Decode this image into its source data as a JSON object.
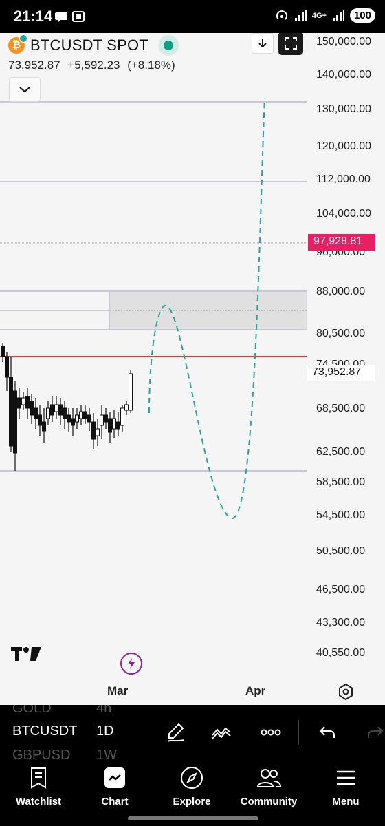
{
  "status_bar": {
    "time": "21:14",
    "network": "4G+",
    "battery": "100"
  },
  "header": {
    "symbol": "BTCUSDT SPOT",
    "last_price": "73,952.87",
    "change": "+5,592.23",
    "change_pct": "(+8.18%)",
    "live_color": "#0e9f85",
    "icons": [
      "bitcoin-logo",
      "download-icon",
      "fullscreen-icon",
      "chevron-down-icon"
    ]
  },
  "price_axis": {
    "labels": [
      "150,000.00",
      "140,000.00",
      "130,000.00",
      "120,000.00",
      "112,000.00",
      "104,000.00",
      "96,000.00",
      "88,000.00",
      "80,500.00",
      "74,500.00",
      "68,500.00",
      "62,500.00",
      "58,500.00",
      "54,500.00",
      "50,500.00",
      "46,500.00",
      "43,300.00",
      "40,550.00"
    ],
    "current_price": "73,952.87",
    "alert_price": "97,928.81",
    "alert_color": "#e91e63",
    "support_line_color": "#e53935"
  },
  "time_axis": {
    "labels": [
      "Mar",
      "Apr"
    ]
  },
  "toolbar": {
    "symbols": [
      "GOLD",
      "BTCUSDT",
      "GBPUSD"
    ],
    "timeframes": [
      "4h",
      "1D",
      "1W"
    ],
    "tools": [
      "pen-tool-icon",
      "indicators-icon",
      "more-icon",
      "undo-icon",
      "redo-icon"
    ]
  },
  "nav": {
    "items": [
      {
        "label": "Watchlist",
        "icon": "watchlist-icon"
      },
      {
        "label": "Chart",
        "icon": "chart-icon"
      },
      {
        "label": "Explore",
        "icon": "compass-icon"
      },
      {
        "label": "Community",
        "icon": "community-icon"
      },
      {
        "label": "Menu",
        "icon": "menu-icon"
      }
    ]
  },
  "chart_data": {
    "type": "candlestick",
    "candle_colors": {
      "up": "#ffffff",
      "down": "#111111"
    },
    "projection": {
      "style": "dashed",
      "color": "#26a69a",
      "points": [
        {
          "x": "early Mar",
          "y": 67500
        },
        {
          "x": "Mar",
          "y": 85000
        },
        {
          "x": "mid Mar",
          "y": 54000
        },
        {
          "x": "Apr",
          "y": 131000
        }
      ]
    }
  }
}
